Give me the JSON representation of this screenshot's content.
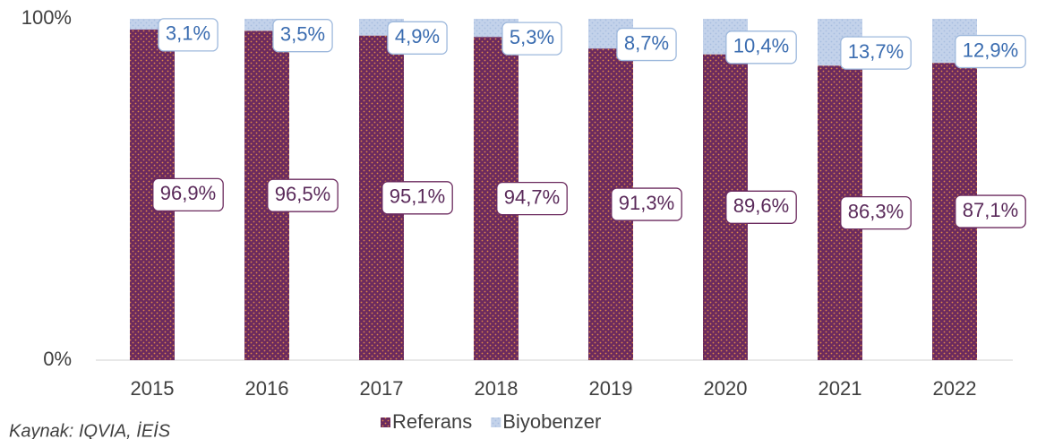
{
  "chart_data": {
    "type": "stacked_bar",
    "categories": [
      "2015",
      "2016",
      "2017",
      "2018",
      "2019",
      "2020",
      "2021",
      "2022"
    ],
    "series": [
      {
        "name": "Referans",
        "color": "#6b2a5e",
        "values": [
          96.9,
          96.5,
          95.1,
          94.7,
          91.3,
          89.6,
          86.3,
          87.1
        ],
        "value_labels": [
          "96,9%",
          "96,5%",
          "95,1%",
          "94,7%",
          "91,3%",
          "89,6%",
          "86,3%",
          "87,1%"
        ]
      },
      {
        "name": "Biyobenzer",
        "color": "#c3d2ea",
        "values": [
          3.1,
          3.5,
          4.9,
          5.3,
          8.7,
          10.4,
          13.7,
          12.9
        ],
        "value_labels": [
          "3,1%",
          "3,5%",
          "4,9%",
          "5,3%",
          "8,7%",
          "10,4%",
          "13,7%",
          "12,9%"
        ]
      }
    ],
    "ylim": [
      0,
      100
    ],
    "yticks": [
      {
        "value": 0,
        "label": "0%"
      },
      {
        "value": 100,
        "label": "100%"
      }
    ],
    "legend": "bottom",
    "source": "Kaynak: IQVIA, İEİS"
  }
}
